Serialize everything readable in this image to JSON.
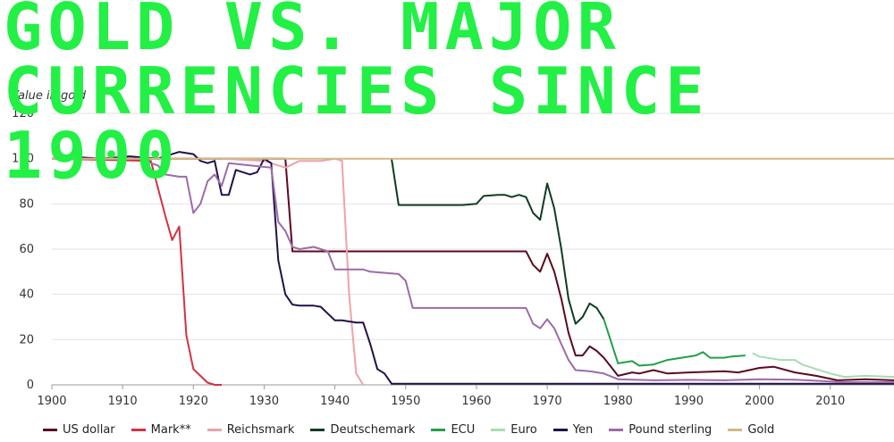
{
  "chart_data": {
    "type": "line",
    "title": "GOLD VS. MAJOR CURRENCIES SINCE 1900",
    "ylabel": "Value in gold",
    "xlabel": "",
    "xlim": [
      1900,
      2019
    ],
    "ylim": [
      0,
      120
    ],
    "x_ticks": [
      "1900",
      "1910",
      "1920",
      "1930",
      "1940",
      "1950",
      "1960",
      "1970",
      "1980",
      "1990",
      "2000",
      "2010"
    ],
    "y_ticks": [
      "0",
      "20",
      "40",
      "60",
      "80",
      "100",
      "120"
    ],
    "grid": true,
    "legend_position": "bottom",
    "series": [
      {
        "name": "US dollar",
        "color": "#5b0a1f",
        "points": [
          [
            1900,
            100
          ],
          [
            1932,
            100
          ],
          [
            1933,
            100
          ],
          [
            1934,
            59
          ],
          [
            1967,
            59
          ],
          [
            1968,
            53
          ],
          [
            1969,
            50
          ],
          [
            1970,
            58
          ],
          [
            1971,
            50
          ],
          [
            1972,
            38
          ],
          [
            1973,
            23
          ],
          [
            1974,
            13
          ],
          [
            1975,
            13
          ],
          [
            1976,
            17
          ],
          [
            1977,
            15
          ],
          [
            1978,
            12
          ],
          [
            1979,
            8
          ],
          [
            1980,
            4
          ],
          [
            1982,
            5.5
          ],
          [
            1983,
            5
          ],
          [
            1985,
            6.5
          ],
          [
            1987,
            5
          ],
          [
            1990,
            5.5
          ],
          [
            1995,
            6
          ],
          [
            1997,
            5.5
          ],
          [
            2000,
            7.5
          ],
          [
            2002,
            8
          ],
          [
            2005,
            5.5
          ],
          [
            2008,
            4
          ],
          [
            2011,
            2
          ],
          [
            2015,
            2.5
          ],
          [
            2019,
            2
          ]
        ]
      },
      {
        "name": "Mark**",
        "color": "#d23244",
        "points": [
          [
            1900,
            100
          ],
          [
            1914,
            99
          ],
          [
            1915,
            87
          ],
          [
            1916,
            75
          ],
          [
            1917,
            64
          ],
          [
            1918,
            70
          ],
          [
            1919,
            22
          ],
          [
            1920,
            7
          ],
          [
            1921,
            4
          ],
          [
            1922,
            1
          ],
          [
            1923,
            0
          ],
          [
            1924,
            0
          ]
        ]
      },
      {
        "name": "Reichsmark",
        "color": "#eda3aa",
        "points": [
          [
            1924,
            100
          ],
          [
            1930,
            99
          ],
          [
            1933,
            96
          ],
          [
            1935,
            99
          ],
          [
            1938,
            99
          ],
          [
            1940,
            100
          ],
          [
            1941,
            99
          ],
          [
            1942,
            40
          ],
          [
            1943,
            5
          ],
          [
            1944,
            0
          ]
        ]
      },
      {
        "name": "Deutschemark",
        "color": "#0e3d22",
        "points": [
          [
            1948,
            100
          ],
          [
            1949,
            79.5
          ],
          [
            1958,
            79.5
          ],
          [
            1960,
            80
          ],
          [
            1961,
            83.5
          ],
          [
            1963,
            84
          ],
          [
            1964,
            84
          ],
          [
            1965,
            83
          ],
          [
            1966,
            84
          ],
          [
            1967,
            83
          ],
          [
            1968,
            76
          ],
          [
            1969,
            73
          ],
          [
            1970,
            89
          ],
          [
            1971,
            78
          ],
          [
            1972,
            60
          ],
          [
            1973,
            38
          ],
          [
            1974,
            27
          ],
          [
            1975,
            30
          ],
          [
            1976,
            36
          ],
          [
            1977,
            34
          ],
          [
            1978,
            29
          ]
        ]
      },
      {
        "name": "ECU",
        "color": "#20a048",
        "points": [
          [
            1978,
            29
          ],
          [
            1980,
            9.5
          ],
          [
            1982,
            10.5
          ],
          [
            1983,
            8.5
          ],
          [
            1985,
            9
          ],
          [
            1987,
            11
          ],
          [
            1989,
            12
          ],
          [
            1991,
            13
          ],
          [
            1992,
            14.5
          ],
          [
            1993,
            12
          ],
          [
            1995,
            12
          ],
          [
            1996,
            12.5
          ],
          [
            1998,
            13
          ]
        ]
      },
      {
        "name": "Euro",
        "color": "#a6dcb0",
        "points": [
          [
            1999,
            14
          ],
          [
            2000,
            12.5
          ],
          [
            2003,
            11
          ],
          [
            2005,
            11
          ],
          [
            2006,
            9
          ],
          [
            2008,
            7
          ],
          [
            2010,
            5
          ],
          [
            2012,
            3.5
          ],
          [
            2015,
            4
          ],
          [
            2019,
            3.5
          ]
        ]
      },
      {
        "name": "Yen",
        "color": "#22104a",
        "points": [
          [
            1900,
            100
          ],
          [
            1902,
            101
          ],
          [
            1907,
            100
          ],
          [
            1911,
            101
          ],
          [
            1915,
            100
          ],
          [
            1917,
            102
          ],
          [
            1918,
            103
          ],
          [
            1920,
            102
          ],
          [
            1921,
            99
          ],
          [
            1922,
            98
          ],
          [
            1923,
            99
          ],
          [
            1924,
            84
          ],
          [
            1925,
            84
          ],
          [
            1926,
            95
          ],
          [
            1928,
            93
          ],
          [
            1929,
            94
          ],
          [
            1930,
            100
          ],
          [
            1931,
            98
          ],
          [
            1932,
            55
          ],
          [
            1933,
            40
          ],
          [
            1934,
            35.5
          ],
          [
            1935,
            35
          ],
          [
            1937,
            35
          ],
          [
            1938,
            34.5
          ],
          [
            1940,
            28.5
          ],
          [
            1941,
            28.5
          ],
          [
            1943,
            27.5
          ],
          [
            1944,
            27.5
          ],
          [
            1945,
            18
          ],
          [
            1946,
            7
          ],
          [
            1947,
            5
          ],
          [
            1948,
            0.5
          ],
          [
            2019,
            0.5
          ]
        ]
      },
      {
        "name": "Pound sterling",
        "color": "#9d6ba8",
        "points": [
          [
            1900,
            100
          ],
          [
            1913,
            100
          ],
          [
            1914,
            98
          ],
          [
            1915,
            97
          ],
          [
            1916,
            93
          ],
          [
            1918,
            92
          ],
          [
            1919,
            92
          ],
          [
            1920,
            76
          ],
          [
            1921,
            80
          ],
          [
            1922,
            90
          ],
          [
            1923,
            93
          ],
          [
            1924,
            88
          ],
          [
            1925,
            98
          ],
          [
            1931,
            96
          ],
          [
            1932,
            72
          ],
          [
            1933,
            68
          ],
          [
            1934,
            61
          ],
          [
            1935,
            60
          ],
          [
            1937,
            61
          ],
          [
            1939,
            59
          ],
          [
            1940,
            51
          ],
          [
            1944,
            51
          ],
          [
            1945,
            50
          ],
          [
            1949,
            49
          ],
          [
            1950,
            46
          ],
          [
            1951,
            34
          ],
          [
            1967,
            34
          ],
          [
            1968,
            27
          ],
          [
            1969,
            25
          ],
          [
            1970,
            29
          ],
          [
            1971,
            25
          ],
          [
            1972,
            18
          ],
          [
            1973,
            11
          ],
          [
            1974,
            6.5
          ],
          [
            1976,
            6
          ],
          [
            1978,
            5
          ],
          [
            1980,
            2.5
          ],
          [
            1985,
            2
          ],
          [
            1990,
            2.2
          ],
          [
            1995,
            2
          ],
          [
            2000,
            2.5
          ],
          [
            2005,
            2.3
          ],
          [
            2008,
            1.8
          ],
          [
            2012,
            1.2
          ],
          [
            2019,
            1.2
          ]
        ]
      },
      {
        "name": "Gold",
        "color": "#d4b884",
        "points": [
          [
            1900,
            100
          ],
          [
            2019,
            100
          ]
        ]
      }
    ]
  }
}
